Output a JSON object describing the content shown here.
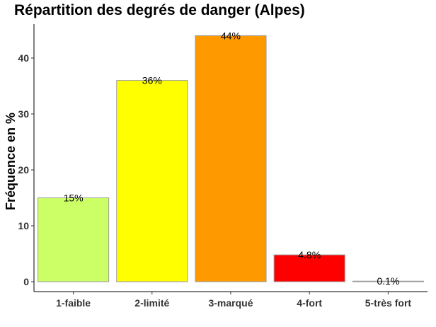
{
  "chart_data": {
    "type": "bar",
    "title": "Répartition des degrés de danger (Alpes)",
    "xlabel": "",
    "ylabel": "Fréquence en %",
    "categories": [
      "1-faible",
      "2-limité",
      "3-marqué",
      "4-fort",
      "5-très fort"
    ],
    "values": [
      15,
      36,
      44,
      4.8,
      0.1
    ],
    "data_labels": [
      "15%",
      "36%",
      "44%",
      "4.8%",
      "0.1%"
    ],
    "colors": [
      "#CCFF66",
      "#FFFF00",
      "#FF9900",
      "#FF0000",
      "#CC99CC"
    ],
    "ylim": [
      0,
      46
    ],
    "yticks": [
      0,
      10,
      20,
      30,
      40
    ],
    "grid": false,
    "legend": "none"
  }
}
